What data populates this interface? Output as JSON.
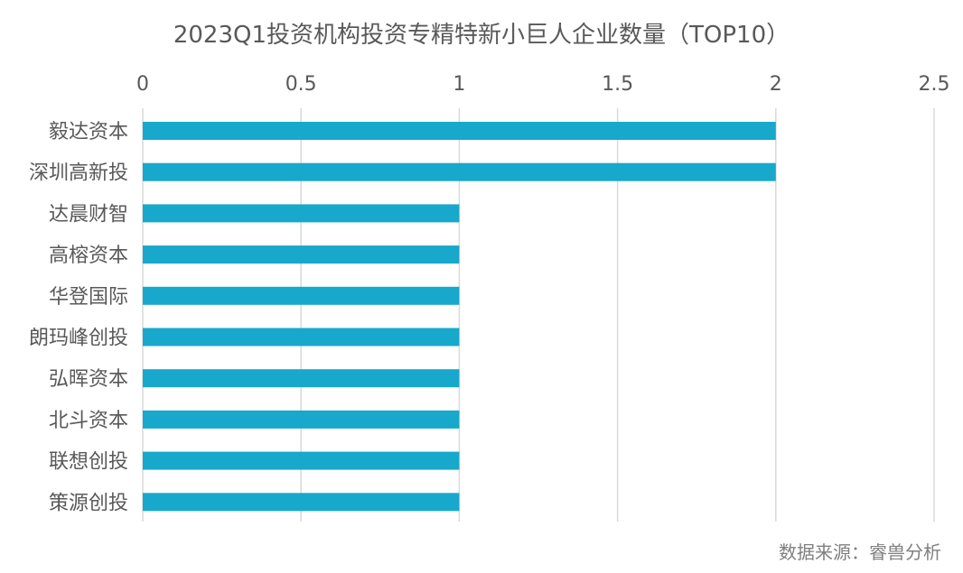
{
  "chart_data": {
    "type": "bar",
    "orientation": "horizontal",
    "title": "2023Q1投资机构投资专精特新小巨人企业数量（TOP10）",
    "categories": [
      "毅达资本",
      "深圳高新投",
      "达晨财智",
      "高榕资本",
      "华登国际",
      "朗玛峰创投",
      "弘晖资本",
      "北斗资本",
      "联想创投",
      "策源创投"
    ],
    "values": [
      2,
      2,
      1,
      1,
      1,
      1,
      1,
      1,
      1,
      1
    ],
    "xlim": [
      0,
      2.5
    ],
    "xticks": [
      "0",
      "0.5",
      "1",
      "1.5",
      "2",
      "2.5"
    ],
    "xtick_values": [
      0,
      0.5,
      1,
      1.5,
      2,
      2.5
    ],
    "x_axis_position": "top",
    "grid": true,
    "legend": "none",
    "bar_color": "#17A8CC",
    "grid_color": "#D9D9D9"
  },
  "source_note": "数据来源：睿兽分析"
}
